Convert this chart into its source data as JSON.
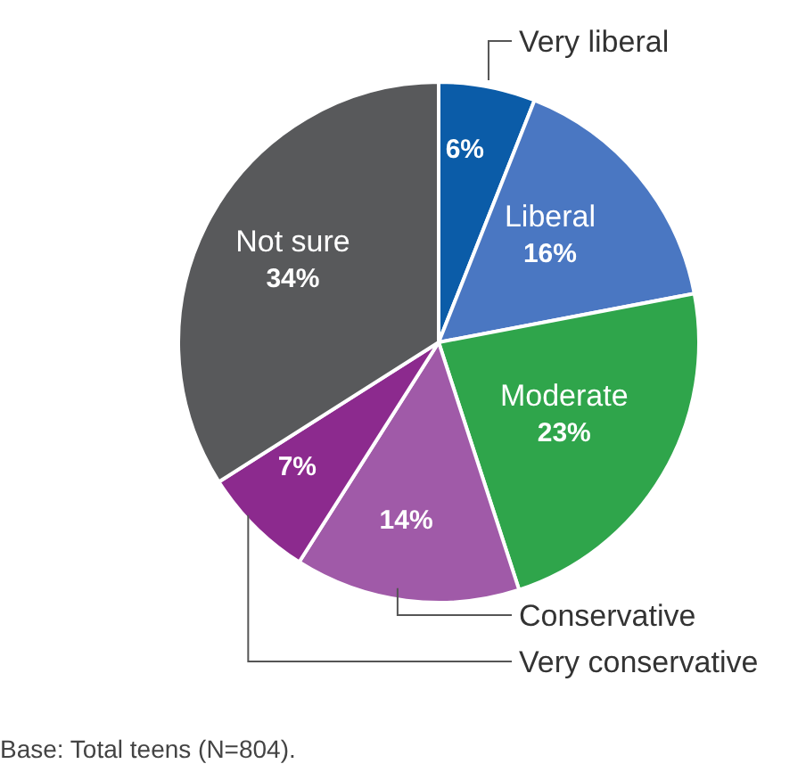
{
  "chart_data": {
    "type": "pie",
    "categories": [
      "Very liberal",
      "Liberal",
      "Moderate",
      "Conservative",
      "Very conservative",
      "Not sure"
    ],
    "values": [
      6,
      16,
      23,
      14,
      7,
      34
    ],
    "value_labels": [
      "6%",
      "16%",
      "23%",
      "14%",
      "7%",
      "34%"
    ],
    "colors": [
      "#0b5ca8",
      "#4a77c2",
      "#2fa54b",
      "#a05aa8",
      "#8c2a8e",
      "#58595b"
    ],
    "annotations": [
      "Base: Total teens (N=804)."
    ]
  }
}
